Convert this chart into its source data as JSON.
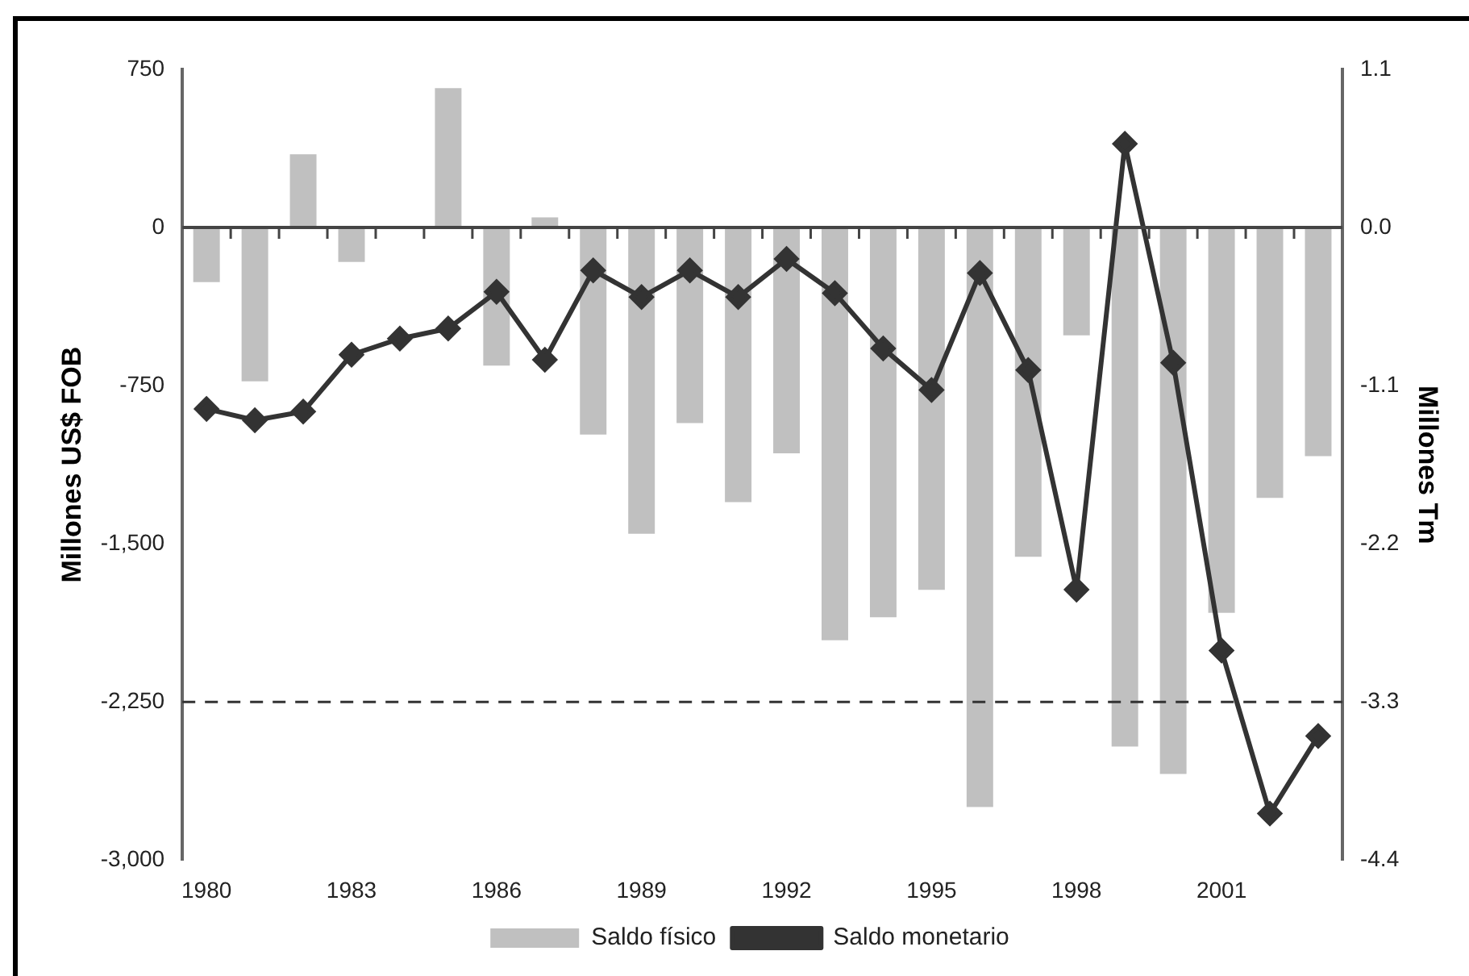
{
  "chart_data": {
    "type": "bar",
    "ylabel": "Millones US$ FOB",
    "y2label": "Millones Tm",
    "categories": [
      "1980",
      null,
      null,
      "1983",
      null,
      null,
      "1986",
      null,
      null,
      "1989",
      null,
      null,
      "1992",
      null,
      null,
      "1995",
      null,
      null,
      "1998",
      null,
      null,
      "2001",
      null,
      null
    ],
    "series": [
      {
        "name": "Saldo físico",
        "axis": "y2",
        "color": "#c0c0c0",
        "values": [
          -0.38,
          -1.07,
          0.51,
          -0.24,
          0,
          0.97,
          -0.96,
          0.07,
          -1.44,
          -2.13,
          -1.36,
          -1.91,
          -1.57,
          -2.87,
          -2.71,
          -2.52,
          -4.03,
          -2.29,
          -0.75,
          -3.61,
          -3.8,
          -2.68,
          -1.88,
          -1.59
        ]
      },
      {
        "name": "Saldo monetario",
        "type": "line",
        "axis": "y",
        "color": "#333333",
        "marker": "diamond",
        "line_style": "solid",
        "values": [
          -860,
          -914,
          -873,
          -603,
          -527,
          -479,
          -305,
          -627,
          -203,
          -330,
          -203,
          -330,
          -149,
          -311,
          -573,
          -770,
          -216,
          -676,
          -1717,
          397,
          -641,
          -2006,
          -2779,
          -2411
        ]
      }
    ],
    "ylim": [
      -3000,
      750
    ],
    "yticks": [
      {
        "value": -3000,
        "label": "-3,000"
      },
      {
        "value": -2250,
        "label": "-2,250"
      },
      {
        "value": -1500,
        "label": "-1,500"
      },
      -750,
      0,
      750
    ],
    "y2lim": [
      -4.4,
      1.1
    ],
    "y2ticks": [
      -4.4,
      -3.3,
      -2.2,
      -1.1,
      {
        "value": 0,
        "label": "0.0"
      },
      1.1
    ],
    "ref_lines": [
      {
        "axis": "y",
        "value": -2250,
        "color": "#333333",
        "line_style": "dashed"
      }
    ],
    "grid": false,
    "legend": "bottom"
  }
}
